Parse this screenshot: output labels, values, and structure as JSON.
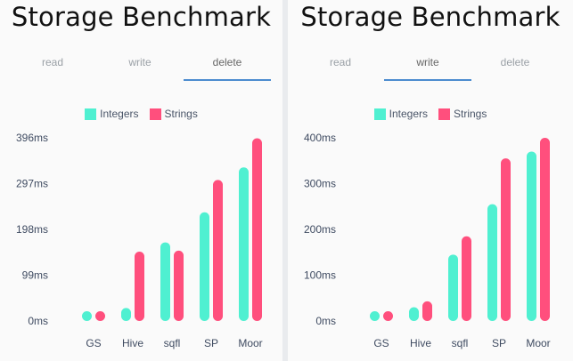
{
  "colors": {
    "integers": "#4ff0d1",
    "strings": "#ff4f7d",
    "tab_indicator": "#4b8bcf"
  },
  "screens": [
    {
      "title": "Storage Benchmark",
      "tabs": [
        {
          "label": "read",
          "active": false
        },
        {
          "label": "write",
          "active": false
        },
        {
          "label": "delete",
          "active": true
        }
      ],
      "legend": [
        "Integers",
        "Strings"
      ]
    },
    {
      "title": "Storage Benchmark",
      "tabs": [
        {
          "label": "read",
          "active": false
        },
        {
          "label": "write",
          "active": true
        },
        {
          "label": "delete",
          "active": false
        }
      ],
      "legend": [
        "Integers",
        "Strings"
      ]
    }
  ],
  "chart_data": [
    {
      "type": "bar",
      "categories": [
        "GS",
        "Hive",
        "sqfl",
        "SP",
        "Moor"
      ],
      "series": [
        {
          "name": "Integers",
          "values": [
            15,
            28,
            170,
            235,
            332
          ]
        },
        {
          "name": "Strings",
          "values": [
            15,
            150,
            152,
            305,
            395
          ]
        }
      ],
      "yticks": [
        "0ms",
        "99ms",
        "198ms",
        "297ms",
        "396ms"
      ],
      "ylim": [
        0,
        396
      ],
      "legend_position": "top-center"
    },
    {
      "type": "bar",
      "categories": [
        "GS",
        "Hive",
        "sqfl",
        "SP",
        "Moor"
      ],
      "series": [
        {
          "name": "Integers",
          "values": [
            15,
            30,
            145,
            255,
            370
          ]
        },
        {
          "name": "Strings",
          "values": [
            15,
            43,
            185,
            355,
            400
          ]
        }
      ],
      "yticks": [
        "0ms",
        "100ms",
        "200ms",
        "300ms",
        "400ms"
      ],
      "ylim": [
        0,
        400
      ],
      "legend_position": "top-center"
    }
  ]
}
